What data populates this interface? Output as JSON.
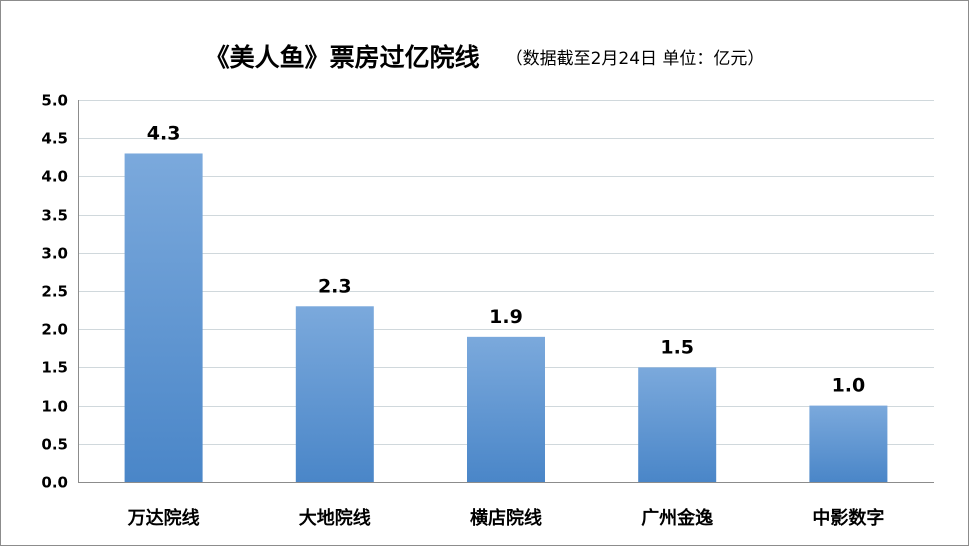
{
  "chart_data": {
    "type": "bar",
    "title": "《美人鱼》票房过亿院线",
    "subtitle": "（数据截至2月24日 单位：亿元）",
    "xlabel": "",
    "ylabel": "",
    "categories": [
      "万达院线",
      "大地院线",
      "横店院线",
      "广州金逸",
      "中影数字"
    ],
    "values": [
      4.3,
      2.3,
      1.9,
      1.5,
      1.0
    ],
    "data_labels": [
      "4.3",
      "2.3",
      "1.9",
      "1.5",
      "1.0"
    ],
    "ylim": [
      0,
      5
    ],
    "yticks": [
      "0.0",
      "0.5",
      "1.0",
      "1.5",
      "2.0",
      "2.5",
      "3.0",
      "3.5",
      "4.0",
      "4.5",
      "5.0"
    ],
    "grid": true,
    "legend": "none",
    "bar_color_top": "#7ba9dc",
    "bar_color_bottom": "#4a86c8"
  }
}
